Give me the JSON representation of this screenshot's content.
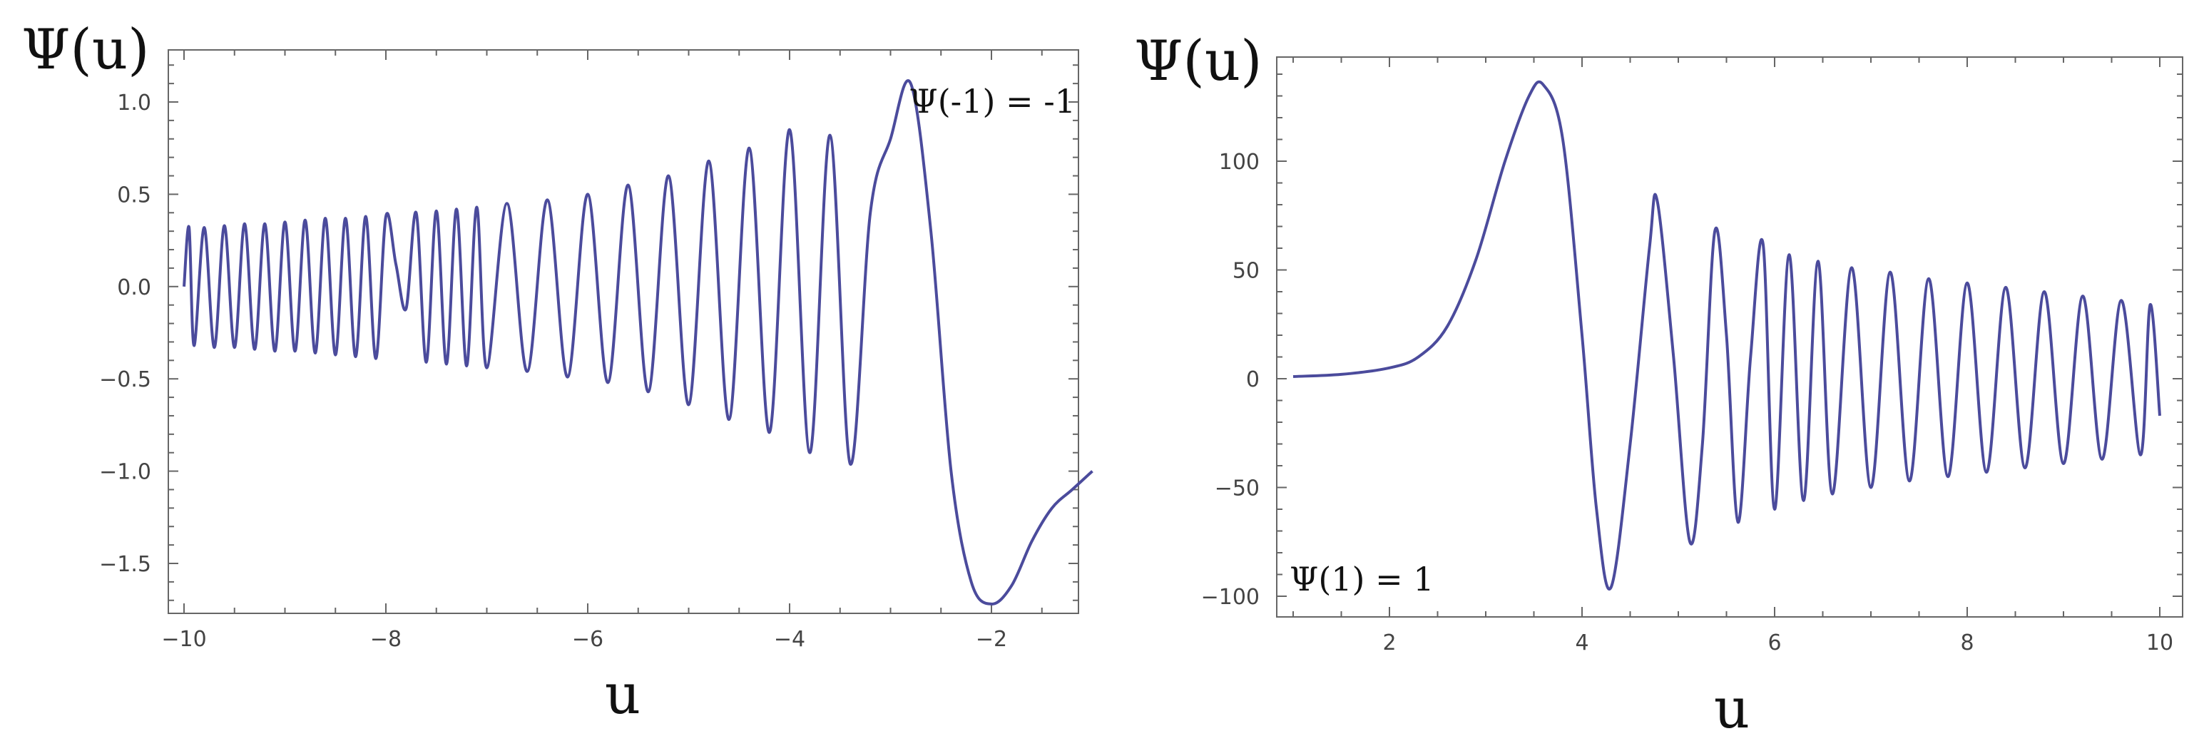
{
  "chart_data": [
    {
      "type": "line",
      "xlabel": "u",
      "ylabel": "Ψ(u)",
      "xlim": [
        -10,
        -1
      ],
      "ylim": [
        -1.85,
        1.25
      ],
      "xticks": [
        -10,
        -8,
        -6,
        -4,
        -2
      ],
      "xtick_labels": [
        "−10",
        "−8",
        "−6",
        "−4",
        "−2"
      ],
      "yticks": [
        1.0,
        0.5,
        0.0,
        -0.5,
        -1.0,
        -1.5
      ],
      "ytick_labels": [
        "1.0",
        "0.5",
        "0.0",
        "−0.5",
        "−1.0",
        "−1.5"
      ],
      "annotation": "Ψ(-1) = -1",
      "annotation_position": "top-right",
      "grid": false,
      "line_color": "#4b4b9c",
      "series": [
        {
          "x": [
            -10.0,
            -9.95,
            -9.9,
            -9.8,
            -9.7,
            -9.6,
            -9.5,
            -9.4,
            -9.3,
            -9.2,
            -9.1,
            -9.0,
            -8.9,
            -8.8,
            -8.7,
            -8.6,
            -8.5,
            -8.4,
            -8.3,
            -8.2,
            -8.1,
            -8.0,
            -7.9,
            -7.8,
            -7.7,
            -7.6,
            -7.5,
            -7.4,
            -7.3,
            -7.2,
            -7.1,
            -7.0,
            -6.8,
            -6.6,
            -6.4,
            -6.2,
            -6.0,
            -5.8,
            -5.6,
            -5.4,
            -5.2,
            -5.0,
            -4.8,
            -4.6,
            -4.4,
            -4.2,
            -4.0,
            -3.8,
            -3.6,
            -3.4,
            -3.2,
            -3.0,
            -2.8,
            -2.6,
            -2.4,
            -2.2,
            -2.0,
            -1.8,
            -1.6,
            -1.4,
            -1.2,
            -1.0
          ],
          "y": [
            0.0,
            0.32,
            -0.32,
            0.32,
            -0.33,
            0.33,
            -0.33,
            0.34,
            -0.34,
            0.34,
            -0.35,
            0.35,
            -0.35,
            0.36,
            -0.36,
            0.37,
            -0.37,
            0.37,
            -0.38,
            0.38,
            -0.39,
            0.38,
            0.12,
            -0.12,
            0.4,
            -0.41,
            0.41,
            -0.42,
            0.42,
            -0.43,
            0.43,
            -0.44,
            0.45,
            -0.46,
            0.47,
            -0.49,
            0.5,
            -0.52,
            0.55,
            -0.57,
            0.6,
            -0.64,
            0.68,
            -0.72,
            0.75,
            -0.79,
            0.85,
            -0.9,
            0.82,
            -0.96,
            0.4,
            0.8,
            1.1,
            0.3,
            -1.0,
            -1.6,
            -1.72,
            -1.62,
            -1.38,
            -1.2,
            -1.1,
            -1.0
          ]
        }
      ]
    },
    {
      "type": "line",
      "xlabel": "u",
      "ylabel": "Ψ(u)",
      "xlim": [
        1,
        10
      ],
      "ylim": [
        -108,
        140
      ],
      "xticks": [
        2,
        4,
        6,
        8,
        10
      ],
      "xtick_labels": [
        "2",
        "4",
        "6",
        "8",
        "10"
      ],
      "yticks": [
        100,
        50,
        0,
        -50,
        -100
      ],
      "ytick_labels": [
        "100",
        "50",
        "0",
        "−50",
        "−100"
      ],
      "annotation": "Ψ(1) = 1",
      "annotation_position": "bottom-left",
      "grid": false,
      "line_color": "#4b4b9c",
      "series": [
        {
          "x": [
            1.0,
            1.5,
            2.0,
            2.3,
            2.6,
            2.9,
            3.2,
            3.45,
            3.6,
            3.8,
            4.0,
            4.15,
            4.3,
            4.5,
            4.7,
            4.78,
            4.95,
            5.12,
            5.25,
            5.38,
            5.5,
            5.62,
            5.75,
            5.88,
            6.0,
            6.15,
            6.3,
            6.45,
            6.6,
            6.8,
            7.0,
            7.2,
            7.4,
            7.6,
            7.8,
            8.0,
            8.2,
            8.4,
            8.6,
            8.8,
            9.0,
            9.2,
            9.4,
            9.6,
            9.8,
            9.9,
            10.0
          ],
          "y": [
            1,
            2,
            5,
            10,
            24,
            55,
            100,
            130,
            135,
            110,
            20,
            -60,
            -96,
            -30,
            60,
            82,
            10,
            -75,
            -30,
            68,
            20,
            -66,
            10,
            62,
            -60,
            57,
            -56,
            54,
            -53,
            51,
            -50,
            49,
            -47,
            46,
            -45,
            44,
            -43,
            42,
            -41,
            40,
            -39,
            38,
            -37,
            36,
            -35,
            34,
            -17
          ]
        }
      ]
    }
  ]
}
